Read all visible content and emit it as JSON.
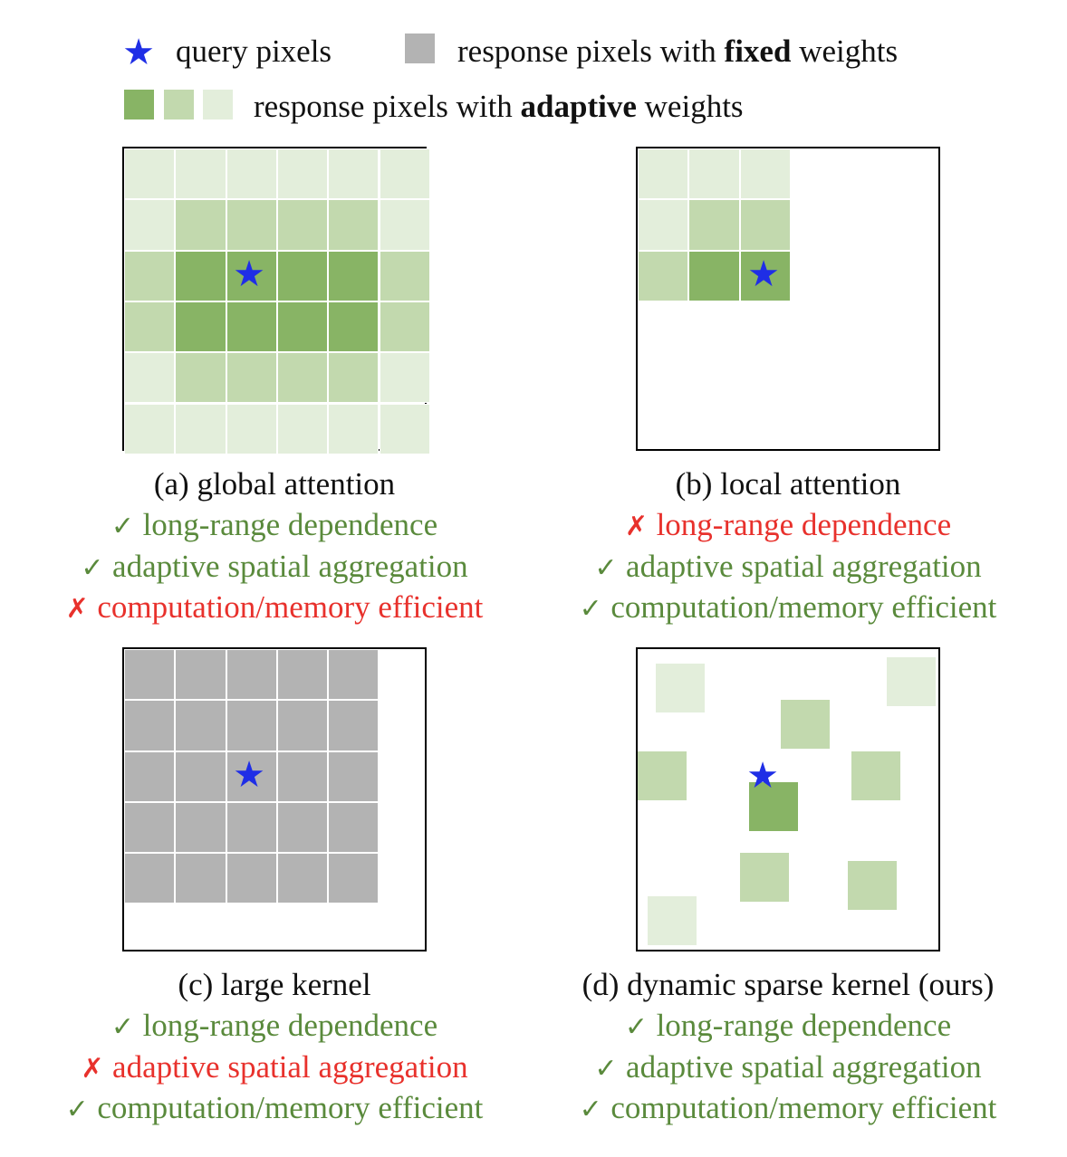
{
  "colors": {
    "dark_green": "#88b465",
    "mid_green": "#c2d9ae",
    "light_green": "#e3eedb",
    "gray": "#b3b3b3",
    "star_blue": "#1f2ee6",
    "good_green": "#5a8a3c",
    "bad_red": "#e8312c"
  },
  "legend": {
    "query_label": "query pixels",
    "fixed_prefix": "response pixels with ",
    "fixed_bold": "fixed",
    "fixed_suffix": " weights",
    "adaptive_prefix": "response pixels with ",
    "adaptive_bold": "adaptive",
    "adaptive_suffix": " weights"
  },
  "icons": {
    "star": "★",
    "check": "✓",
    "cross": "✗"
  },
  "panels": [
    {
      "caption": "(a) global attention",
      "properties": [
        {
          "mark": "check",
          "text": "long-range dependence"
        },
        {
          "mark": "check",
          "text": "adaptive spatial aggregation"
        },
        {
          "mark": "cross",
          "text": "computation/memory efficient"
        }
      ]
    },
    {
      "caption": "(b) local attention",
      "properties": [
        {
          "mark": "cross",
          "text": "long-range dependence"
        },
        {
          "mark": "check",
          "text": "adaptive spatial aggregation"
        },
        {
          "mark": "check",
          "text": "computation/memory efficient"
        }
      ]
    },
    {
      "caption": "(c) large kernel",
      "properties": [
        {
          "mark": "check",
          "text": "long-range dependence"
        },
        {
          "mark": "cross",
          "text": "adaptive spatial aggregation"
        },
        {
          "mark": "check",
          "text": "computation/memory efficient"
        }
      ]
    },
    {
      "caption": "(d) dynamic sparse kernel (ours)",
      "properties": [
        {
          "mark": "check",
          "text": "long-range dependence"
        },
        {
          "mark": "check",
          "text": "adaptive spatial aggregation"
        },
        {
          "mark": "check",
          "text": "computation/memory efficient"
        }
      ]
    }
  ]
}
